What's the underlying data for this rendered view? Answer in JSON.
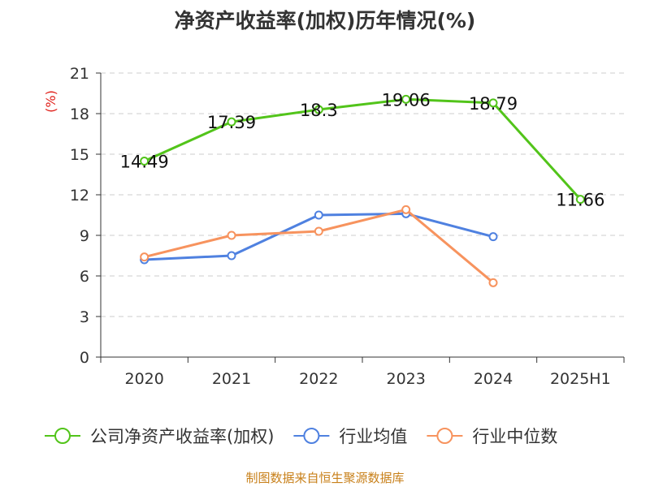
{
  "chart_data": {
    "type": "line",
    "title": "净资产收益率(加权)历年情况(%)",
    "ylabel": "(%)",
    "xlabel": "",
    "categories": [
      "2020",
      "2021",
      "2022",
      "2023",
      "2024",
      "2025H1"
    ],
    "ylim": [
      0,
      21
    ],
    "yticks": [
      0,
      3,
      6,
      9,
      12,
      15,
      18,
      21
    ],
    "grid": true,
    "legend_position": "bottom",
    "series": [
      {
        "name": "公司净资产收益率(加权)",
        "color": "#52c41a",
        "values": [
          14.49,
          17.39,
          18.3,
          19.06,
          18.79,
          11.66
        ],
        "labels": [
          "14.49",
          "17.39",
          "18.3",
          "19.06",
          "18.79",
          "11.66"
        ],
        "show_labels": true
      },
      {
        "name": "行业均值",
        "color": "#4f81e0",
        "values": [
          7.2,
          7.5,
          10.5,
          10.6,
          8.9,
          null
        ],
        "show_labels": false
      },
      {
        "name": "行业中位数",
        "color": "#f7935e",
        "values": [
          7.4,
          9.0,
          9.3,
          10.9,
          5.5,
          null
        ],
        "show_labels": false
      }
    ],
    "source": "制图数据来自恒生聚源数据库",
    "colors": {
      "ylabel": "#e0201a",
      "source": "#c8801a",
      "axis": "#333333",
      "grid": "#cccccc"
    }
  }
}
